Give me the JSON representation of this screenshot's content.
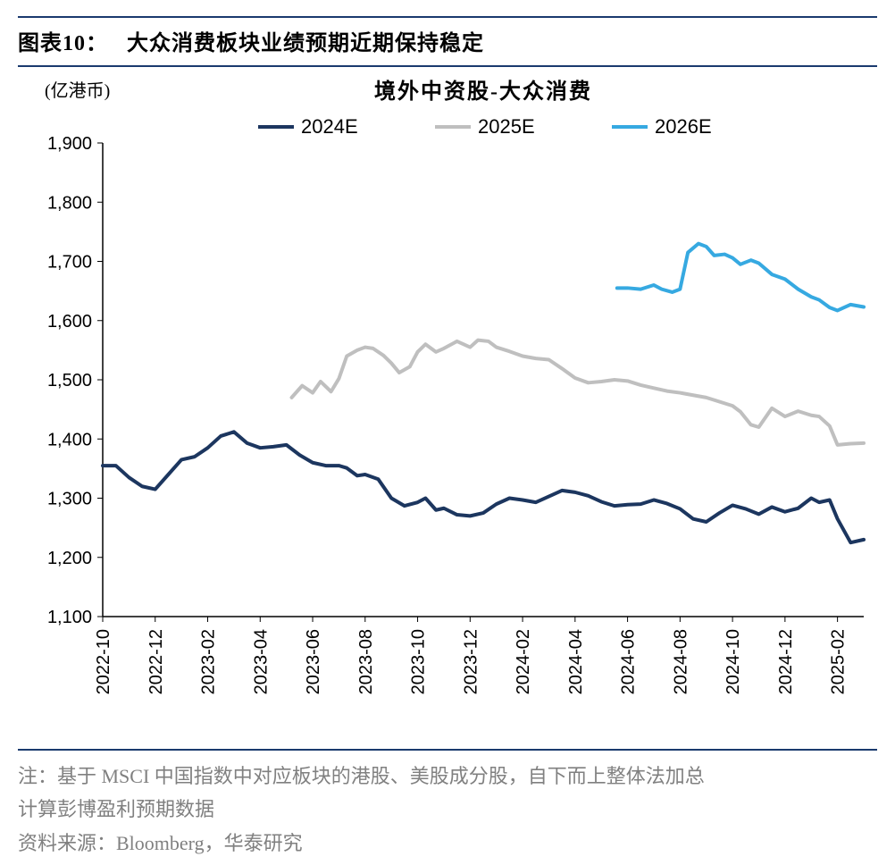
{
  "figure": {
    "label_prefix": "图表10：",
    "title_after": "大众消费板块业绩预期近期保持稳定"
  },
  "chart": {
    "type": "line",
    "unit_label": "(亿港币)",
    "subtitle": "境外中资股-大众消费",
    "background_color": "#ffffff",
    "axis_color": "#000000",
    "tick_fontsize": 20,
    "label_fontsize": 20,
    "subtitle_fontsize": 24,
    "line_width": 4,
    "y": {
      "min": 1100,
      "max": 1900,
      "step": 100,
      "ticks": [
        1100,
        1200,
        1300,
        1400,
        1500,
        1600,
        1700,
        1800,
        1900
      ]
    },
    "x": {
      "min": 0,
      "max": 29,
      "tick_idx": [
        0,
        2,
        4,
        6,
        8,
        10,
        12,
        14,
        16,
        18,
        20,
        22,
        24,
        26,
        28
      ],
      "tick_labels": [
        "2022-10",
        "2022-12",
        "2023-02",
        "2023-04",
        "2023-06",
        "2023-08",
        "2023-10",
        "2023-12",
        "2024-02",
        "2024-04",
        "2024-06",
        "2024-08",
        "2024-10",
        "2024-12",
        "2025-02"
      ],
      "rotate": -90
    },
    "legend": {
      "items": [
        {
          "label": "2024E",
          "color": "#1c365f"
        },
        {
          "label": "2025E",
          "color": "#bfbfbf"
        },
        {
          "label": "2026E",
          "color": "#36a9e1"
        }
      ],
      "fontsize": 22
    },
    "series": {
      "s2024E": {
        "color": "#1c365f",
        "x": [
          0,
          0.5,
          1,
          1.5,
          2,
          2.5,
          3,
          3.5,
          4,
          4.5,
          5,
          5.5,
          6,
          6.5,
          7,
          7.5,
          8,
          8.5,
          9,
          9.3,
          9.7,
          10,
          10.5,
          11,
          11.5,
          12,
          12.3,
          12.7,
          13,
          13.5,
          14,
          14.5,
          15,
          15.5,
          16,
          16.5,
          17,
          17.5,
          18,
          18.5,
          19,
          19.5,
          20,
          20.5,
          21,
          21.5,
          22,
          22.5,
          23,
          23.5,
          24,
          24.5,
          25,
          25.5,
          26,
          26.5,
          27,
          27.3,
          27.7,
          28,
          28.5,
          29
        ],
        "y": [
          1355,
          1355,
          1335,
          1320,
          1315,
          1340,
          1365,
          1370,
          1385,
          1405,
          1412,
          1393,
          1385,
          1387,
          1390,
          1373,
          1360,
          1355,
          1355,
          1351,
          1338,
          1340,
          1332,
          1300,
          1287,
          1293,
          1300,
          1280,
          1283,
          1272,
          1270,
          1275,
          1290,
          1300,
          1297,
          1293,
          1303,
          1313,
          1310,
          1304,
          1294,
          1287,
          1289,
          1290,
          1297,
          1291,
          1282,
          1265,
          1260,
          1275,
          1288,
          1282,
          1273,
          1285,
          1277,
          1283,
          1281,
          1244,
          1303,
          1310,
          1298,
          1300
        ],
        "y_tail": [
          1300,
          1293,
          1297,
          1265,
          1225,
          1230
        ]
      },
      "s2025E": {
        "color": "#bfbfbf",
        "x": [
          7.2,
          7.6,
          8,
          8.3,
          8.7,
          9,
          9.3,
          9.7,
          10,
          10.3,
          10.7,
          11,
          11.3,
          11.7,
          12,
          12.3,
          12.7,
          13,
          13.5,
          14,
          14.3,
          14.7,
          15,
          15.5,
          16,
          16.5,
          17,
          17.5,
          18,
          18.5,
          19,
          19.5,
          20,
          20.5,
          21,
          21.5,
          22,
          22.5,
          23,
          23.5,
          24,
          24.3,
          24.7,
          25,
          25.5,
          26,
          26.5,
          27,
          27.3,
          27.7,
          28,
          28.5,
          29
        ],
        "y": [
          1470,
          1490,
          1478,
          1497,
          1480,
          1502,
          1540,
          1550,
          1555,
          1553,
          1541,
          1528,
          1512,
          1522,
          1547,
          1560,
          1547,
          1553,
          1565,
          1555,
          1567,
          1565,
          1555,
          1548,
          1540,
          1536,
          1534,
          1519,
          1503,
          1495,
          1497,
          1500,
          1498,
          1491,
          1486,
          1481,
          1478,
          1474,
          1470,
          1463,
          1456,
          1446,
          1424,
          1420,
          1452,
          1438,
          1447,
          1440,
          1438,
          1422,
          1390,
          1392,
          1393
        ]
      },
      "s2026E": {
        "color": "#36a9e1",
        "x": [
          19.6,
          20,
          20.5,
          21,
          21.3,
          21.7,
          22,
          22.3,
          22.7,
          23,
          23.3,
          23.7,
          24,
          24.3,
          24.7,
          25,
          25.5,
          26,
          26.5,
          27,
          27.3,
          27.7,
          28,
          28.5,
          29
        ],
        "y": [
          1655,
          1655,
          1653,
          1660,
          1653,
          1648,
          1653,
          1715,
          1730,
          1725,
          1710,
          1712,
          1706,
          1695,
          1702,
          1697,
          1678,
          1670,
          1653,
          1640,
          1635,
          1622,
          1617,
          1627,
          1623
        ]
      }
    }
  },
  "footnote": {
    "line1": "注：基于 MSCI 中国指数中对应板块的港股、美股成分股，自下而上整体法加总",
    "line2": "计算彭博盈利预期数据",
    "line3": "资料来源：Bloomberg，华泰研究",
    "color": "#808080"
  },
  "colors": {
    "rule": "#1a3a6e"
  }
}
